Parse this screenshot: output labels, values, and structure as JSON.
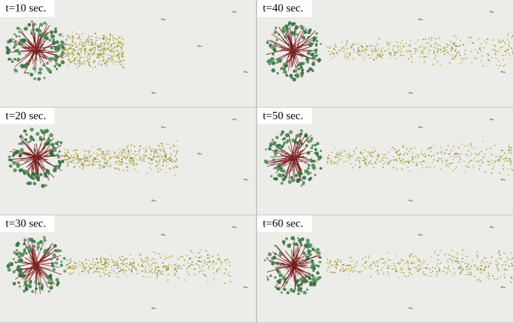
{
  "panels": [
    {
      "label": "t=10 sec."
    },
    {
      "label": "t=40 sec."
    },
    {
      "label": "t=20 sec."
    },
    {
      "label": "t=50 sec."
    },
    {
      "label": "t=30 sec."
    },
    {
      "label": "t=60 sec."
    }
  ]
}
